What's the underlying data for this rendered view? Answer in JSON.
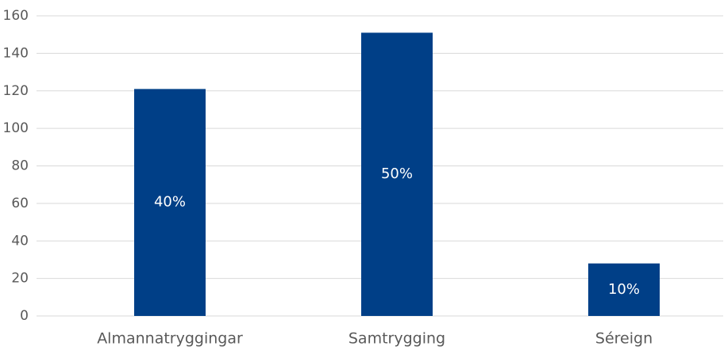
{
  "chart_data": {
    "type": "bar",
    "categories": [
      "Almannatryggingar",
      "Samtrygging",
      "Séreign"
    ],
    "values": [
      121,
      151,
      28
    ],
    "annotations": [
      "40%",
      "50%",
      "10%"
    ],
    "color": "#003f87",
    "ylim": [
      0,
      160
    ],
    "yticks": [
      0,
      20,
      40,
      60,
      80,
      100,
      120,
      140,
      160
    ],
    "grid": true
  }
}
